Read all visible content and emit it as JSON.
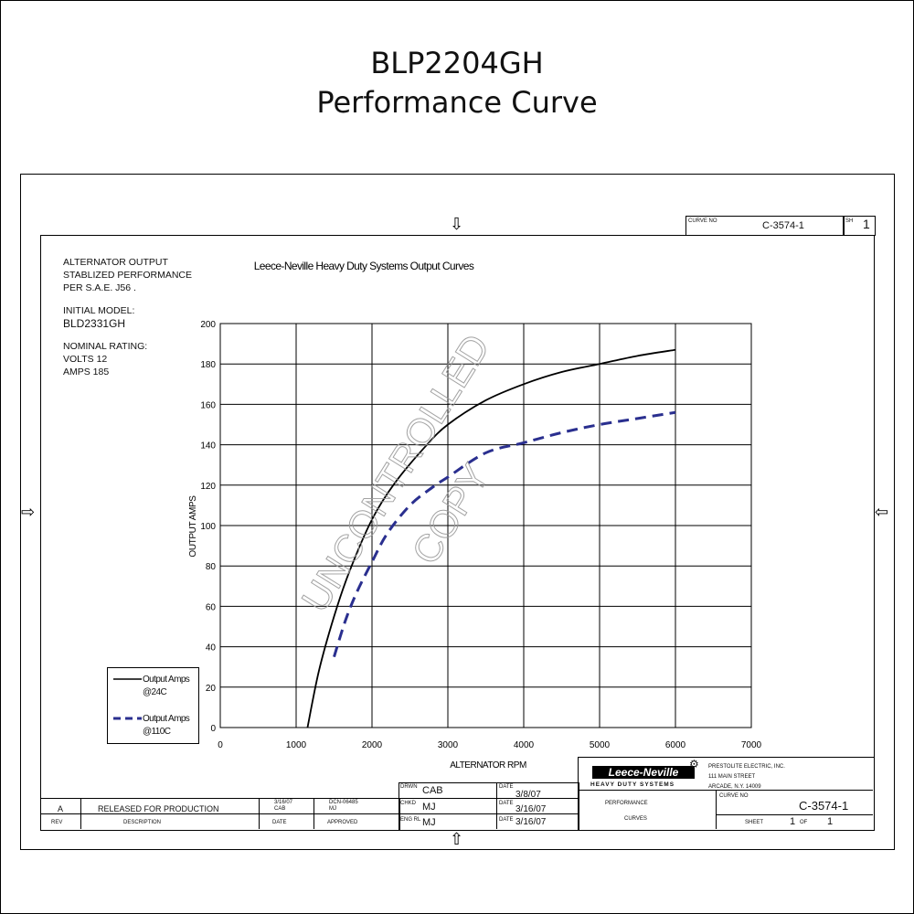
{
  "header": {
    "model": "BLP2204GH",
    "subtitle": "Performance Curve"
  },
  "curve_no_box": {
    "label": "CURVE NO",
    "value": "C-3574-1",
    "sheet_label": "SH",
    "sheet_value": "1"
  },
  "notes": {
    "output_lines": [
      "ALTERNATOR OUTPUT",
      "STABLIZED PERFORMANCE",
      "PER S.A.E. J56 ."
    ],
    "initial_model_label": "INITIAL MODEL:",
    "initial_model_value": "BLD2331GH",
    "nominal_lines": [
      "NOMINAL RATING:",
      "VOLTS 12",
      "AMPS 185"
    ]
  },
  "watermark": {
    "line1": "UNCONTROLLED",
    "line2": "COPY"
  },
  "title_block": {
    "logo": "Leece-Neville",
    "logo_sub": "HEAVY DUTY SYSTEMS",
    "company_lines": [
      "PRESTOLITE ELECTRIC, INC.",
      "111 MAIN STREET",
      "ARCADE, N.Y. 14009"
    ],
    "drawn_label": "DRWN",
    "drawn_by": "CAB",
    "drawn_date_label": "DATE",
    "drawn_date": "3/8/07",
    "check_label": "CHKD",
    "check_by": "MJ",
    "check_date_label": "DATE",
    "check_date": "3/16/07",
    "eng_label": "ENG RL",
    "eng_by": "MJ",
    "eng_date_label": "DATE",
    "eng_date": "3/16/07",
    "title_line1": "PERFORMANCE",
    "title_line2": "CURVES",
    "curve_no_label": "CURVE NO",
    "curve_no": "C-3574-1",
    "sheet_label": "SHEET",
    "sheet_num": "1",
    "sheet_of": "OF",
    "sheet_total": "1"
  },
  "revision": {
    "rev": "A",
    "description": "RELEASED FOR PRODUCTION",
    "date": "3/16/07",
    "date_by": "CAB",
    "change_no": "DCN-06485",
    "approved_by": "MJ",
    "col_rev": "REV",
    "col_desc": "DESCRIPTION",
    "col_date": "DATE",
    "col_appr": "APPROVED"
  },
  "chart_data": {
    "type": "line",
    "title": "Leece-Neville Heavy Duty Systems Output Curves",
    "xlabel": "ALTERNATOR RPM",
    "ylabel": "OUTPUT AMPS",
    "xlim": [
      0,
      7000
    ],
    "ylim": [
      0,
      200
    ],
    "xticks": [
      0,
      1000,
      2000,
      3000,
      4000,
      5000,
      6000,
      7000
    ],
    "yticks": [
      0,
      20,
      40,
      60,
      80,
      100,
      120,
      140,
      160,
      180,
      200
    ],
    "grid": true,
    "legend_position": "bottom-left",
    "series": [
      {
        "name": "Output Amps @24C",
        "style": "solid",
        "color": "#000000",
        "x": [
          1150,
          1300,
          1500,
          1700,
          2000,
          2300,
          2700,
          3000,
          3500,
          4000,
          4500,
          5000,
          5500,
          6000
        ],
        "y": [
          0,
          28,
          55,
          77,
          103,
          121,
          139,
          150,
          162,
          170,
          176,
          180,
          184,
          187
        ]
      },
      {
        "name": "Output Amps @110C",
        "style": "dashed",
        "color": "#2a2f8f",
        "x": [
          1500,
          1650,
          1800,
          2000,
          2200,
          2500,
          2800,
          3000,
          3500,
          4000,
          4500,
          5000,
          5500,
          6000
        ],
        "y": [
          35,
          53,
          67,
          82,
          96,
          110,
          119,
          124,
          136,
          141,
          146,
          150,
          153,
          156
        ]
      }
    ]
  }
}
